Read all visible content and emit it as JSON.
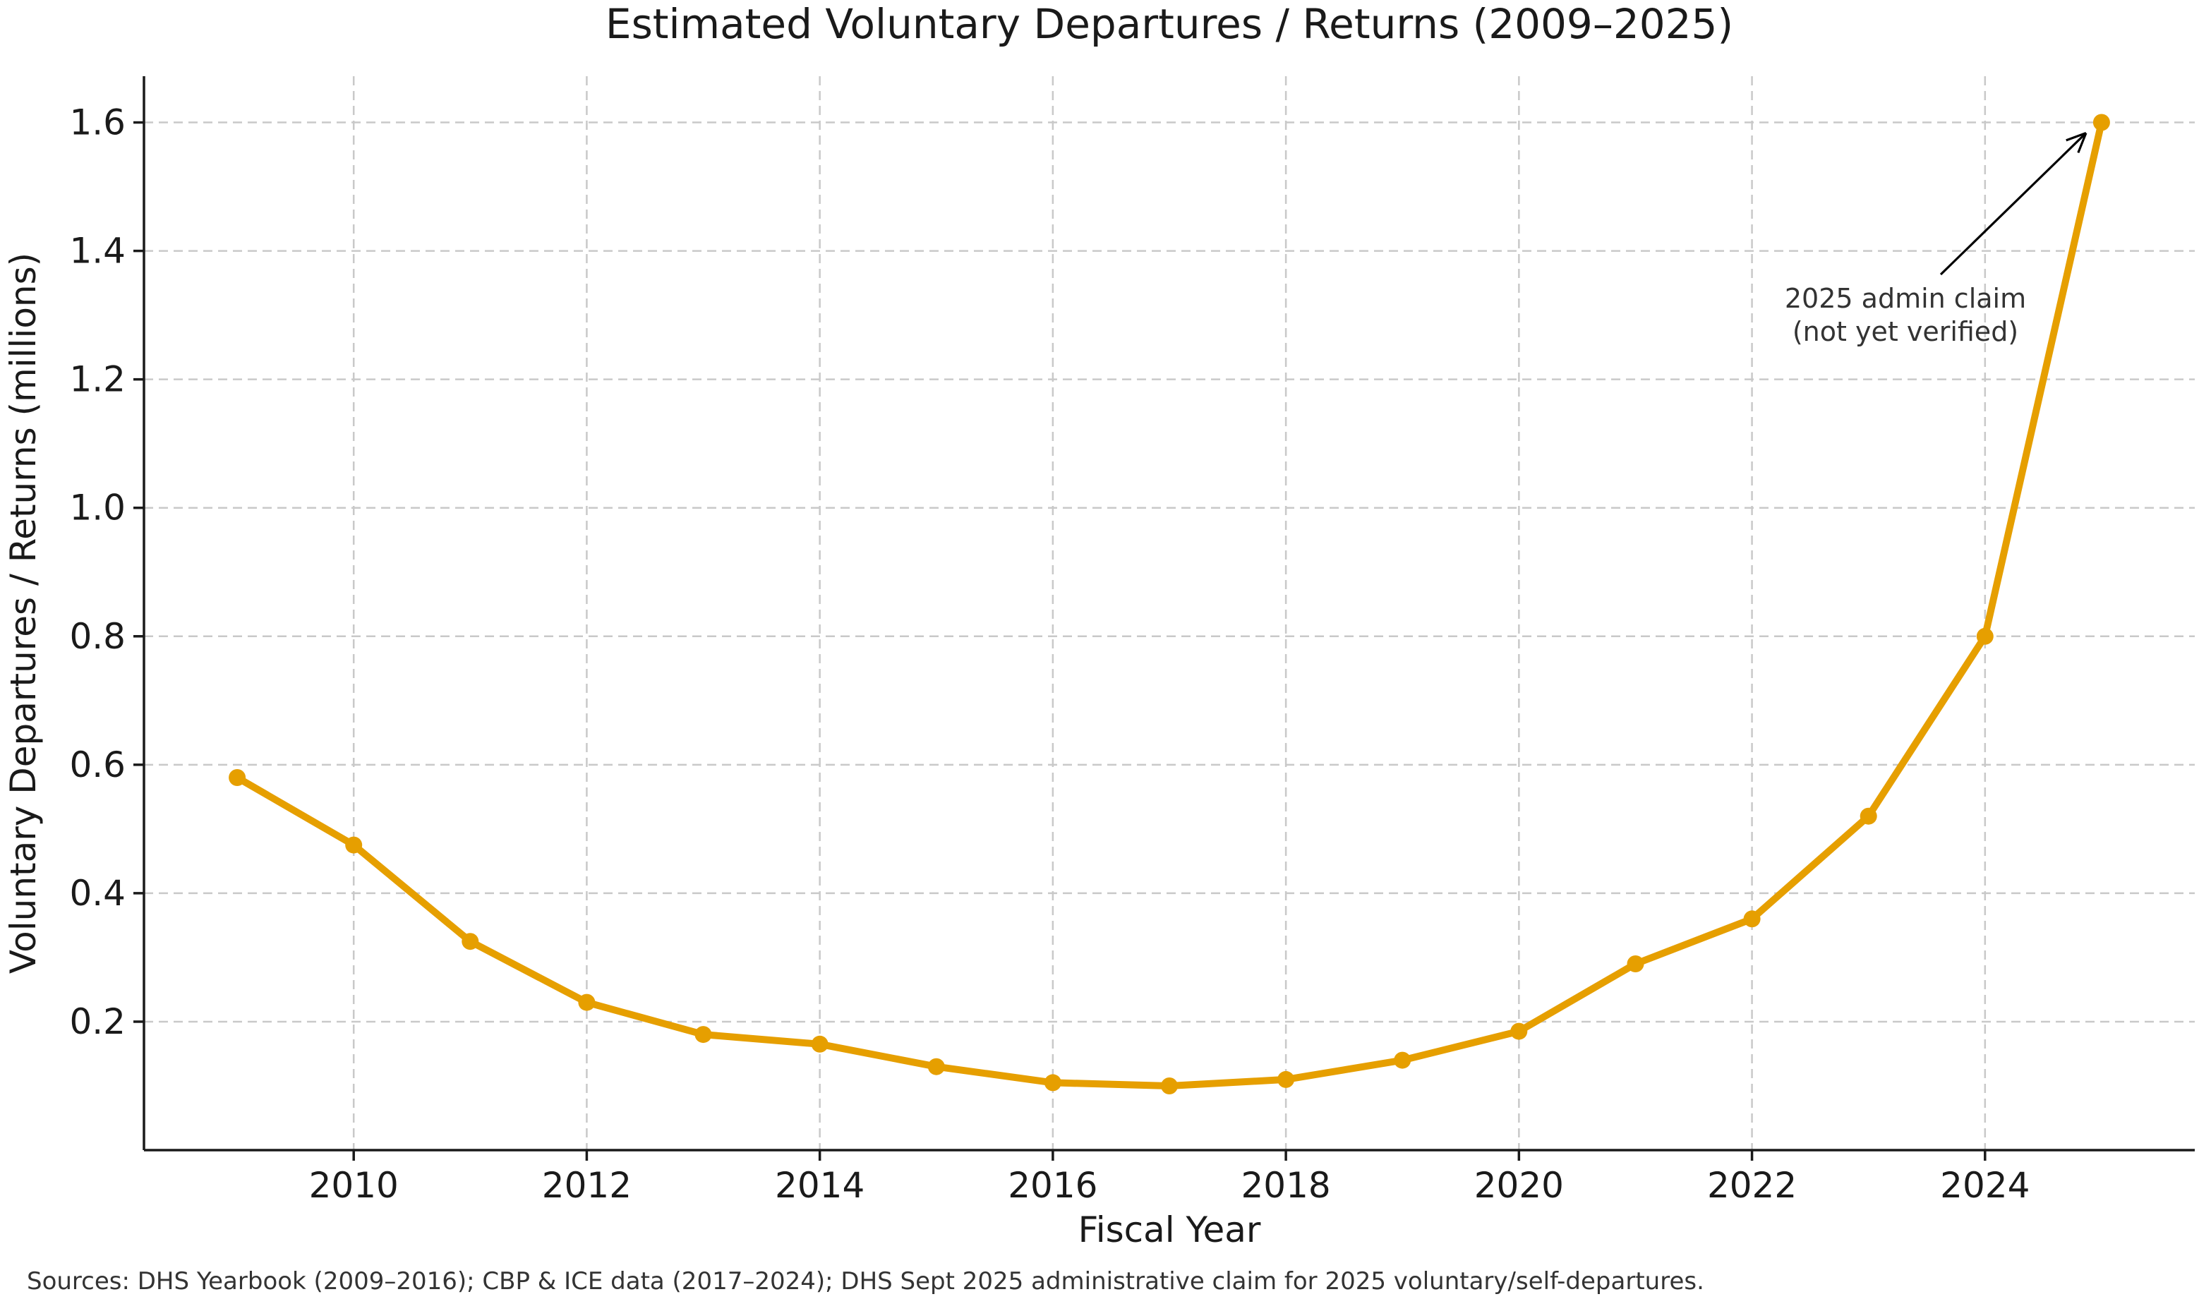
{
  "title": "Estimated Voluntary Departures / Returns (2009–2025)",
  "axes": {
    "x_label": "Fiscal Year",
    "y_label": "Voluntary Departures / Returns (millions)"
  },
  "annotation": {
    "line1": "2025 admin claim",
    "line2": "(not yet verified)",
    "target_year": 2025,
    "target_value": 1.6
  },
  "footer": "Sources: DHS Yearbook (2009–2016); CBP & ICE data (2017–2024); DHS Sept 2025 administrative claim for 2025 voluntary/self-departures.",
  "colors": {
    "line": "#E69F00",
    "marker": "#E69F00",
    "grid": "#c9c9c9",
    "axis": "#1a1a1a",
    "text": "#1a1a1a",
    "muted_text": "#333333",
    "arrow": "#000000",
    "background": "#ffffff"
  },
  "chart_data": {
    "type": "line",
    "title": "Estimated Voluntary Departures / Returns (2009–2025)",
    "xlabel": "Fiscal Year",
    "ylabel": "Voluntary Departures / Returns (millions)",
    "x": [
      2009,
      2010,
      2011,
      2012,
      2013,
      2014,
      2015,
      2016,
      2017,
      2018,
      2019,
      2020,
      2021,
      2022,
      2023,
      2024,
      2025
    ],
    "series": [
      {
        "name": "Estimated voluntary departures / returns (millions)",
        "values": [
          0.58,
          0.475,
          0.325,
          0.23,
          0.18,
          0.165,
          0.13,
          0.105,
          0.1,
          0.11,
          0.14,
          0.185,
          0.29,
          0.36,
          0.52,
          0.8,
          1.6
        ]
      }
    ],
    "x_tick_values": [
      2010,
      2012,
      2014,
      2016,
      2018,
      2020,
      2022,
      2024
    ],
    "x_tick_labels": [
      "2010",
      "2012",
      "2014",
      "2016",
      "2018",
      "2020",
      "2022",
      "2024"
    ],
    "y_tick_values": [
      0.2,
      0.4,
      0.6,
      0.8,
      1.0,
      1.2,
      1.4,
      1.6
    ],
    "y_tick_labels": [
      "0.2",
      "0.4",
      "0.6",
      "0.8",
      "1.0",
      "1.2",
      "1.4",
      "1.6"
    ],
    "xlim": [
      2008.2,
      2025.8
    ],
    "ylim": [
      0,
      1.672
    ],
    "grid": true,
    "grid_style": "dashed",
    "marker": "circle",
    "legend": null
  }
}
